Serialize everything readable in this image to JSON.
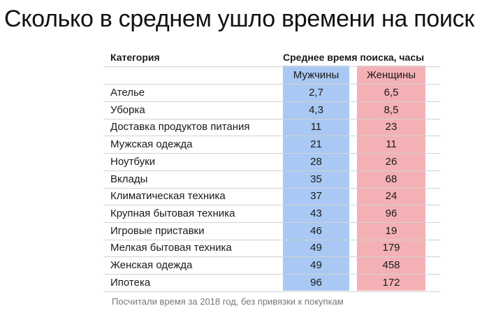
{
  "title": "Сколько в среднем ушло времени на поиск",
  "chart_data": {
    "type": "table",
    "header": {
      "category": "Категория",
      "value_group": "Среднее время поиска, часы"
    },
    "columns": [
      "Мужчины",
      "Женщины"
    ],
    "colors": {
      "men": "#a9c8f3",
      "women": "#f4b1b5"
    },
    "rows": [
      {
        "category": "Ателье",
        "men": "2,7",
        "women": "6,5"
      },
      {
        "category": "Уборка",
        "men": "4,3",
        "women": "8,5"
      },
      {
        "category": "Доставка продуктов питания",
        "men": "11",
        "women": "23"
      },
      {
        "category": "Мужская одежда",
        "men": "21",
        "women": "11"
      },
      {
        "category": "Ноутбуки",
        "men": "28",
        "women": "26"
      },
      {
        "category": "Вклады",
        "men": "35",
        "women": "68"
      },
      {
        "category": "Климатическая техника",
        "men": "37",
        "women": "24"
      },
      {
        "category": "Крупная бытовая техника",
        "men": "43",
        "women": "96"
      },
      {
        "category": "Игровые приставки",
        "men": "46",
        "women": "19"
      },
      {
        "category": "Мелкая бытовая техника",
        "men": "49",
        "women": "179"
      },
      {
        "category": "Женская одежда",
        "men": "49",
        "women": "458"
      },
      {
        "category": "Ипотека",
        "men": "96",
        "women": "172"
      }
    ]
  },
  "footnote": "Посчитали время за 2018 год, без привязки к покупкам"
}
